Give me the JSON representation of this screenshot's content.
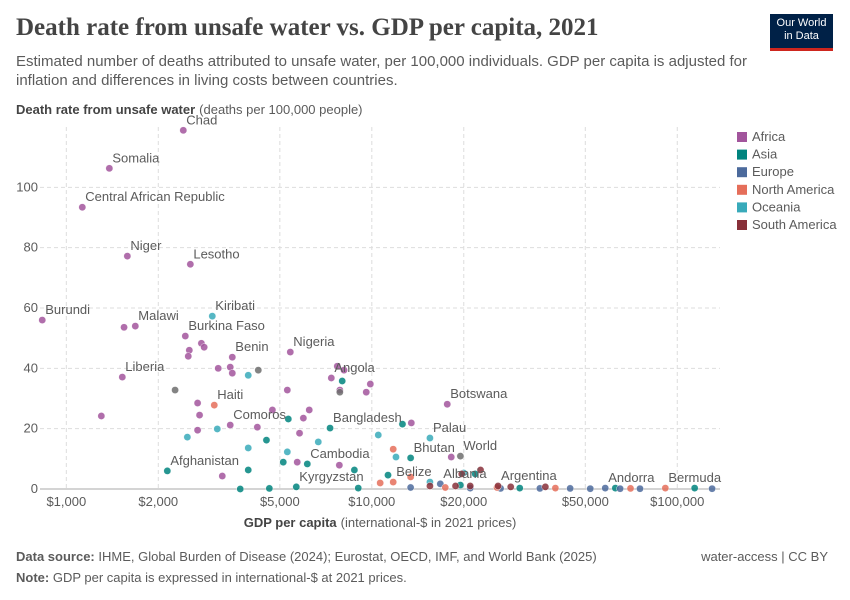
{
  "chart_data": {
    "type": "scatter",
    "title": "Death rate from unsafe water vs. GDP per capita, 2021",
    "subtitle": "Estimated number of deaths attributed to unsafe water, per 100,000 individuals. GDP per capita is adjusted for inflation and differences in living costs between countries.",
    "y_label": {
      "bold": "Death rate from unsafe water",
      "rest": "(deaths per 100,000 people)"
    },
    "x_label": {
      "bold": "GDP per capita",
      "rest": "(international-$ in 2021 prices)"
    },
    "log_x": true,
    "grid": true,
    "legend": "right",
    "xlim": [
      820,
      138000
    ],
    "ylim": [
      0,
      120
    ],
    "xticks": [
      {
        "value": 1000,
        "label": "$1,000"
      },
      {
        "value": 2000,
        "label": "$2,000"
      },
      {
        "value": 5000,
        "label": "$5,000"
      },
      {
        "value": 10000,
        "label": "$10,000"
      },
      {
        "value": 20000,
        "label": "$20,000"
      },
      {
        "value": 50000,
        "label": "$50,000"
      },
      {
        "value": 100000,
        "label": "$100,000"
      }
    ],
    "yticks": [
      0,
      20,
      40,
      60,
      80,
      100
    ],
    "series": [
      {
        "name": "Africa",
        "color": "#a2559c",
        "x": [
          2415,
          1383,
          1128,
          1584,
          2547,
          834,
          1682,
          2452,
          3494,
          5410,
          1525,
          7370,
          17660,
          3440,
          1545,
          2527,
          2768,
          2826,
          2507,
          3142,
          3440,
          3494,
          1302,
          2690,
          2730,
          2690,
          4727,
          5290,
          5800,
          5700,
          7710,
          8110,
          7860,
          9590,
          9890,
          7830,
          4220,
          5970,
          6240,
          13470,
          18200,
          3240
        ],
        "values": [
          118.9,
          106.3,
          93.4,
          77.2,
          74.5,
          56,
          54,
          50.7,
          43.7,
          45.4,
          37.1,
          36.8,
          28.1,
          21.2,
          53.6,
          46,
          48.3,
          47,
          44,
          40,
          40.4,
          38.4,
          24.2,
          19.5,
          24.5,
          28.5,
          26.2,
          32.8,
          18.5,
          8.9,
          40.7,
          39.4,
          32.8,
          32.1,
          34.8,
          7.9,
          20.5,
          23.5,
          26.2,
          21.9,
          10.6,
          4.3
        ],
        "labels": [
          "Chad",
          "Somalia",
          "Central African Republic",
          "Niger",
          "Lesotho",
          "Burundi",
          "Malawi",
          "Burkina Faso",
          "Benin",
          "Nigeria",
          "Liberia",
          "Angola",
          "Botswana",
          "Comoros",
          null,
          null,
          null,
          null,
          null,
          null,
          null,
          null,
          null,
          null,
          null,
          null,
          null,
          null,
          null,
          null,
          null,
          null,
          null,
          null,
          null,
          null,
          null,
          null,
          null,
          null,
          null,
          null
        ]
      },
      {
        "name": "Asia",
        "color": "#00847e",
        "x": [
          7300,
          2141,
          5660,
          6150,
          13400,
          8000,
          5330,
          4520,
          5130,
          3940,
          8770,
          12600,
          21800,
          11300,
          3710,
          4620,
          9030,
          30500,
          62700,
          114000,
          19500
        ],
        "values": [
          20.2,
          6,
          0.7,
          8.3,
          10.3,
          35.8,
          23.2,
          16.2,
          8.9,
          6.3,
          6.3,
          21.5,
          5,
          4.6,
          0,
          0.2,
          0.3,
          0.3,
          0.3,
          0.3,
          1.3
        ],
        "labels": [
          "Bangladesh",
          "Afghanistan",
          "Kyrgyzstan",
          "Cambodia",
          "Bhutan",
          null,
          null,
          null,
          null,
          null,
          null,
          null,
          null,
          null,
          null,
          null,
          null,
          null,
          null,
          null,
          null
        ]
      },
      {
        "name": "Europe",
        "color": "#4c6a9c",
        "x": [
          16760,
          58100,
          21000,
          26400,
          35500,
          44600,
          51900,
          65000,
          75500,
          130000,
          13400
        ],
        "values": [
          1.7,
          0.3,
          0.3,
          0.2,
          0.2,
          0.2,
          0.1,
          0.1,
          0.1,
          0.1,
          0.5
        ],
        "labels": [
          "Albania",
          "Andorra",
          null,
          null,
          null,
          null,
          null,
          null,
          null,
          null,
          null
        ]
      },
      {
        "name": "North America",
        "color": "#e56e5a",
        "x": [
          3050,
          11750,
          91400,
          11750,
          10650,
          13400,
          17400,
          25700,
          39900,
          70300
        ],
        "values": [
          27.8,
          2.3,
          0.3,
          13.2,
          2,
          4,
          0.5,
          0.5,
          0.3,
          0.2
        ],
        "labels": [
          "Haiti",
          "Belize",
          "Bermuda",
          null,
          null,
          null,
          null,
          null,
          null,
          null
        ]
      },
      {
        "name": "Oceania",
        "color": "#38aaba",
        "x": [
          3005,
          15500,
          3940,
          2490,
          3120,
          3940,
          5290,
          6680,
          10500,
          12000,
          20000,
          15500
        ],
        "values": [
          57.3,
          16.9,
          37.7,
          17.2,
          19.9,
          13.6,
          12.3,
          15.6,
          17.9,
          10.6,
          5.3,
          2.3
        ],
        "labels": [
          "Kiribati",
          "Palau",
          null,
          null,
          null,
          null,
          null,
          null,
          null,
          null,
          null,
          null
        ]
      },
      {
        "name": "South America",
        "color": "#883039",
        "x": [
          25900,
          22700,
          15500,
          21000,
          28500,
          37000,
          18800,
          19700
        ],
        "values": [
          1,
          6.3,
          1,
          1,
          0.7,
          0.7,
          1,
          5
        ],
        "labels": [
          "Argentina",
          null,
          null,
          null,
          null,
          null,
          null,
          null
        ]
      },
      {
        "color": "#6d6d6d",
        "x": [
          19500,
          2270,
          4250,
          7860
        ],
        "values": [
          10.9,
          32.8,
          39.4,
          32.1
        ],
        "labels": [
          "World",
          null,
          null,
          null
        ]
      }
    ]
  },
  "logo": [
    "Our World",
    "in Data"
  ],
  "footer": {
    "source": {
      "label": "Data source:",
      "text": "IHME, Global Burden of Disease (2024); Eurostat, OECD, IMF, and World Bank (2025)"
    },
    "note": {
      "label": "Note:",
      "text": "GDP per capita is expressed in international-$ at 2021 prices."
    },
    "credit": "water-access | CC BY"
  }
}
